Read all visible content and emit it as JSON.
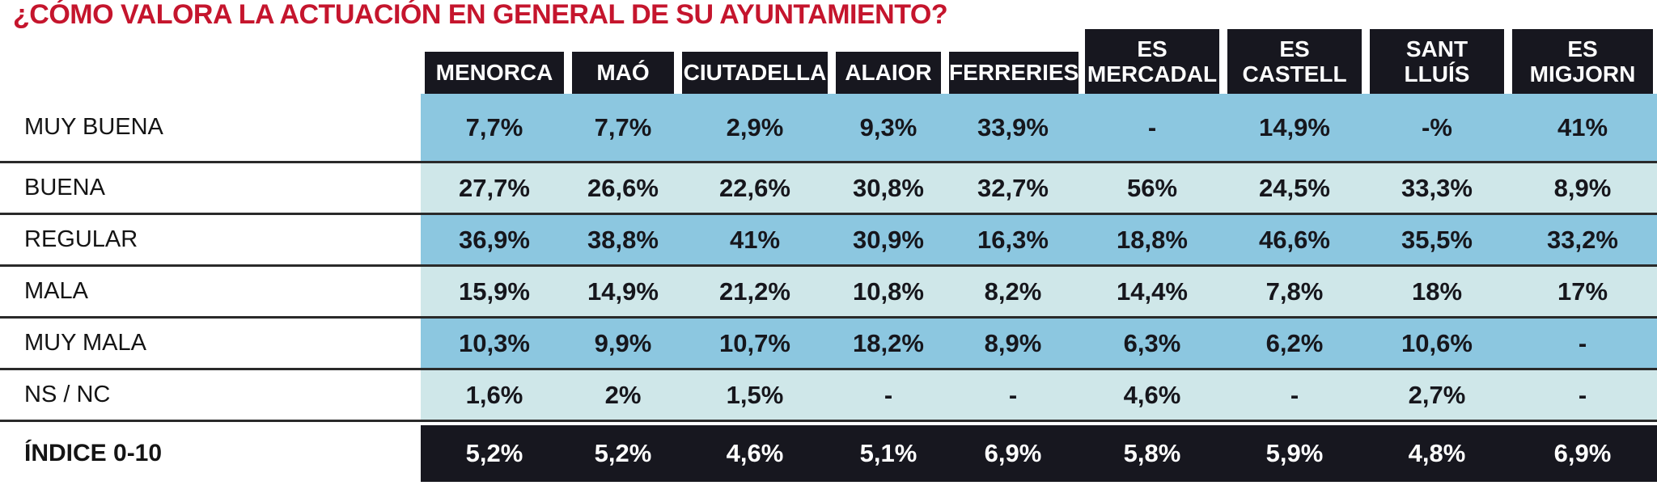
{
  "colors": {
    "title_red": "#c5152d",
    "header_bg": "#17171f",
    "header_text": "#ffffff",
    "row_blue": "#8cc7e0",
    "row_pale": "#cfe7e9",
    "index_bg": "#17171f",
    "index_text": "#ffffff",
    "divider": "#2a2a2a",
    "body_text": "#16161c"
  },
  "chart_data": {
    "type": "table",
    "title": "¿CÓMO VALORA LA ACTUACIÓN EN GENERAL DE SU AYUNTAMIENTO?",
    "columns": [
      {
        "label": "MENORCA",
        "lines": [
          "MENORCA"
        ]
      },
      {
        "label": "MAÓ",
        "lines": [
          "MAÓ"
        ]
      },
      {
        "label": "CIUTADELLA",
        "lines": [
          "CIUTADELLA"
        ]
      },
      {
        "label": "ALAIOR",
        "lines": [
          "ALAIOR"
        ]
      },
      {
        "label": "FERRERIES",
        "lines": [
          "FERRERIES"
        ]
      },
      {
        "label": "ES MERCADAL",
        "lines": [
          "ES",
          "MERCADAL"
        ]
      },
      {
        "label": "ES CASTELL",
        "lines": [
          "ES",
          "CASTELL"
        ]
      },
      {
        "label": "SANT LLUÍS",
        "lines": [
          "SANT",
          "LLUÍS"
        ]
      },
      {
        "label": "ES MIGJORN",
        "lines": [
          "ES",
          "MIGJORN"
        ]
      }
    ],
    "rows": [
      {
        "label": "MUY BUENA",
        "values": [
          "7,7%",
          "7,7%",
          "2,9%",
          "9,3%",
          "33,9%",
          "-",
          "14,9%",
          "-%",
          "41%"
        ]
      },
      {
        "label": "BUENA",
        "values": [
          "27,7%",
          "26,6%",
          "22,6%",
          "30,8%",
          "32,7%",
          "56%",
          "24,5%",
          "33,3%",
          "8,9%"
        ]
      },
      {
        "label": "REGULAR",
        "values": [
          "36,9%",
          "38,8%",
          "41%",
          "30,9%",
          "16,3%",
          "18,8%",
          "46,6%",
          "35,5%",
          "33,2%"
        ]
      },
      {
        "label": "MALA",
        "values": [
          "15,9%",
          "14,9%",
          "21,2%",
          "10,8%",
          "8,2%",
          "14,4%",
          "7,8%",
          "18%",
          "17%"
        ]
      },
      {
        "label": "MUY MALA",
        "values": [
          "10,3%",
          "9,9%",
          "10,7%",
          "18,2%",
          "8,9%",
          "6,3%",
          "6,2%",
          "10,6%",
          "-"
        ]
      },
      {
        "label": "NS / NC",
        "values": [
          "1,6%",
          "2%",
          "1,5%",
          "-",
          "-",
          "4,6%",
          "-",
          "2,7%",
          "-"
        ]
      }
    ],
    "index_row": {
      "label": "ÍNDICE 0-10",
      "values": [
        "5,2%",
        "5,2%",
        "4,6%",
        "5,1%",
        "6,9%",
        "5,8%",
        "5,9%",
        "4,8%",
        "6,9%"
      ]
    }
  }
}
